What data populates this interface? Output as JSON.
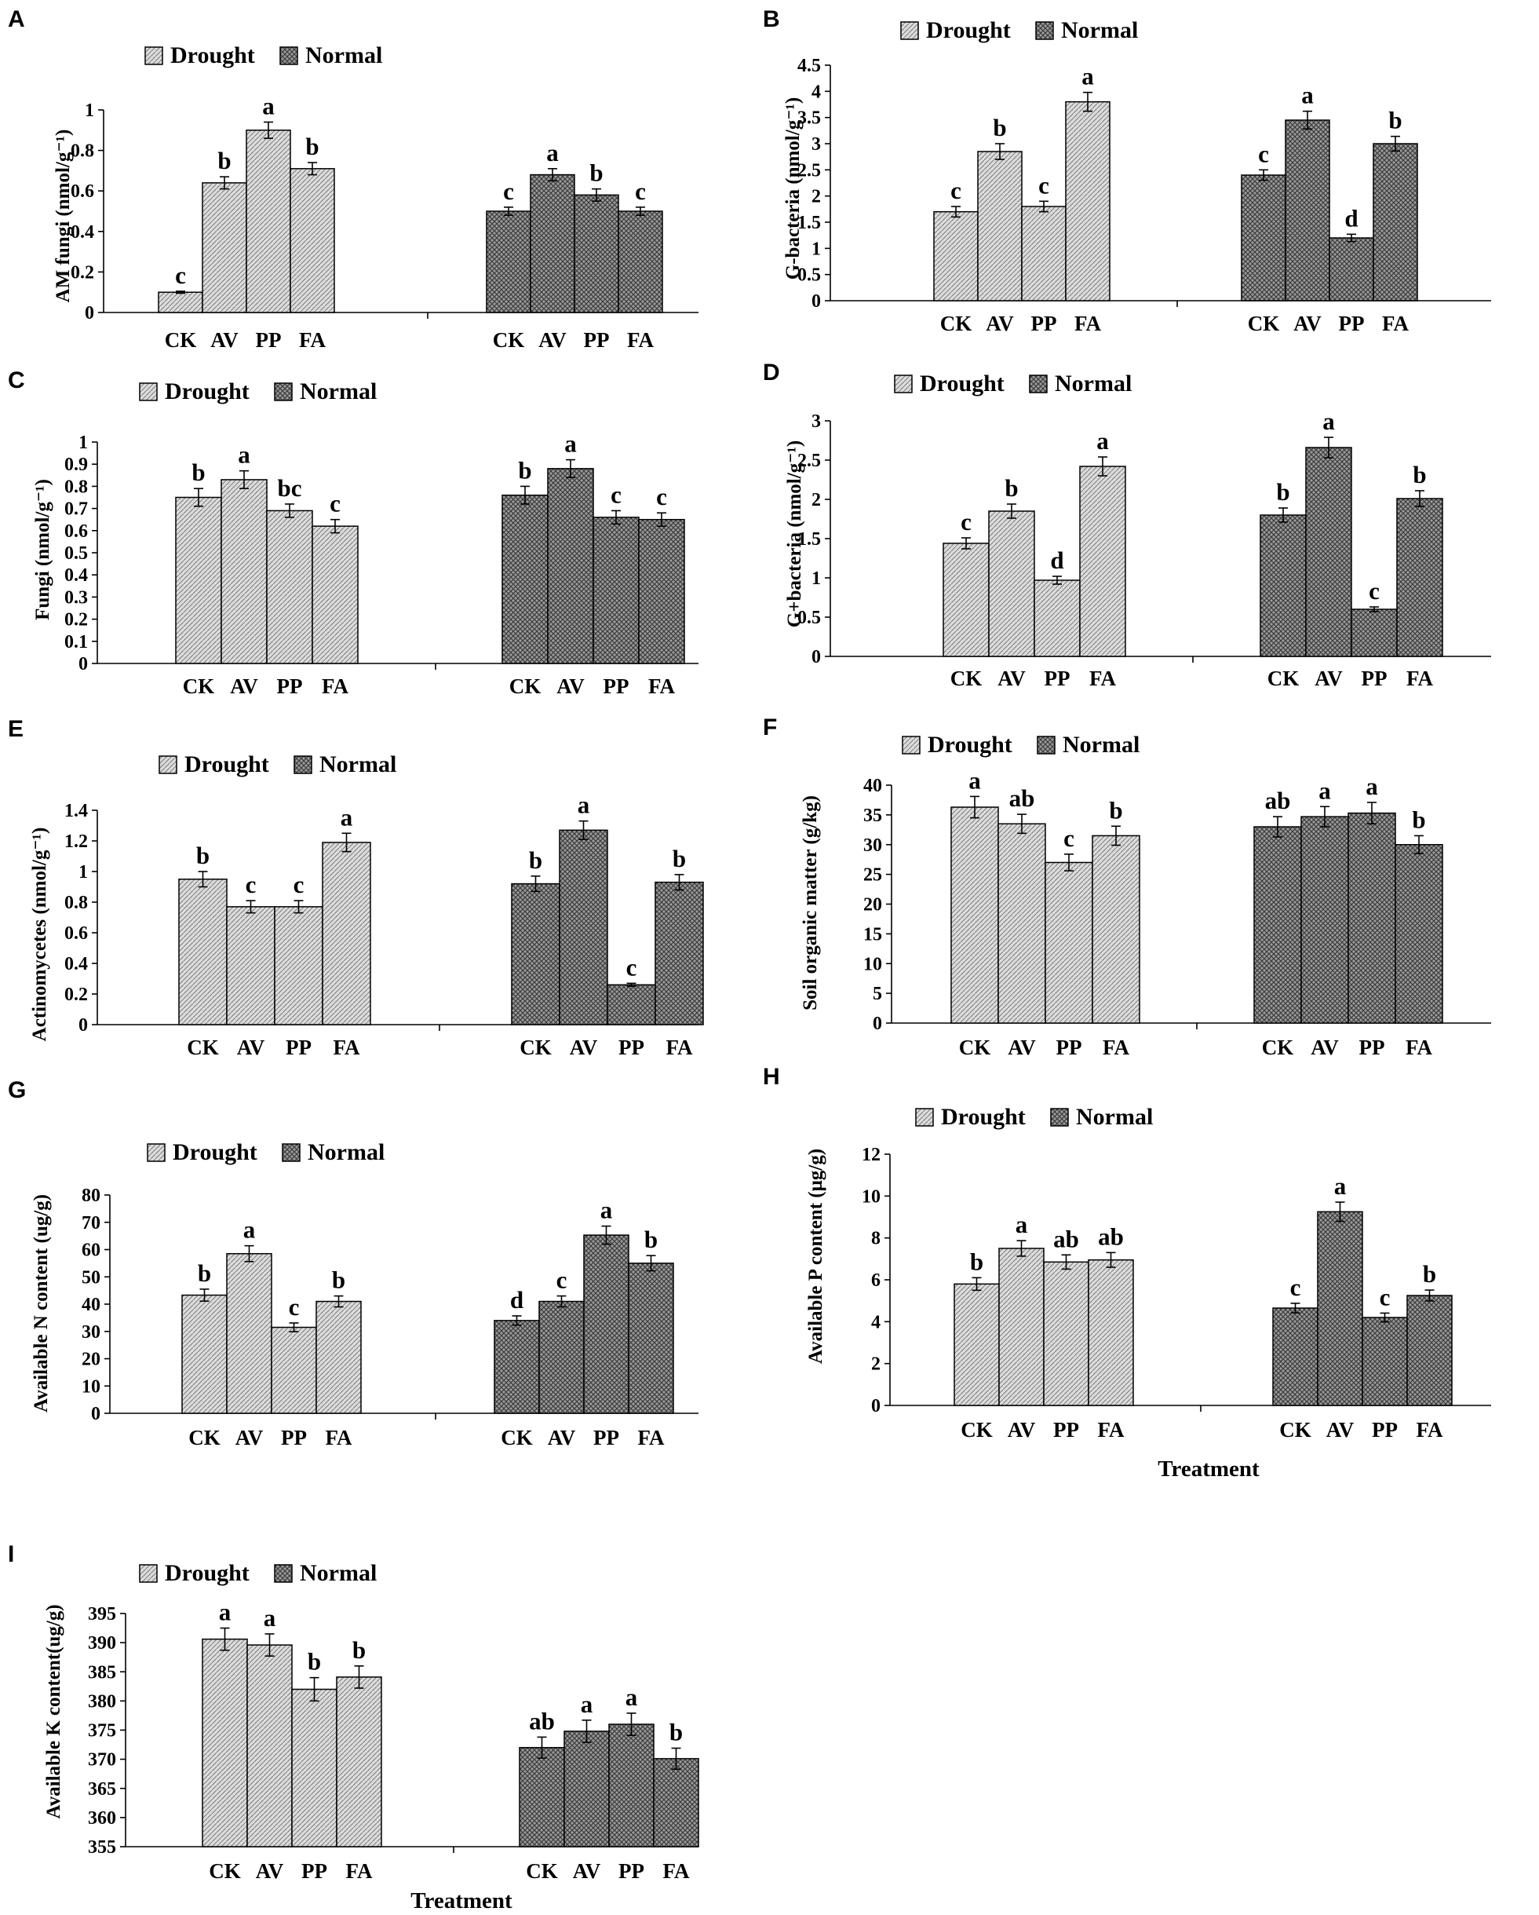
{
  "chart_data": [
    {
      "panel": "A",
      "type": "bar",
      "legend": [
        "Drought",
        "Normal"
      ],
      "ylabel": "AM fungi (nmol/g⁻¹)",
      "ylim": [
        0,
        1
      ],
      "yticks": [
        0,
        0.2,
        0.4,
        0.6,
        0.8,
        1
      ],
      "categories": [
        "CK",
        "AV",
        "PP",
        "FA"
      ],
      "xlabel": "",
      "series": [
        {
          "name": "Drought",
          "values": [
            0.1,
            0.64,
            0.9,
            0.71
          ],
          "errors": [
            0.005,
            0.03,
            0.04,
            0.03
          ],
          "letters": [
            "c",
            "b",
            "a",
            "b"
          ]
        },
        {
          "name": "Normal",
          "values": [
            0.5,
            0.68,
            0.58,
            0.5
          ],
          "errors": [
            0.02,
            0.03,
            0.03,
            0.02
          ],
          "letters": [
            "c",
            "a",
            "b",
            "c"
          ]
        }
      ]
    },
    {
      "panel": "B",
      "type": "bar",
      "legend": [
        "Drought",
        "Normal"
      ],
      "ylabel": "G-bacteria (nmol/g⁻¹)",
      "ylim": [
        0,
        4.5
      ],
      "yticks": [
        0,
        0.5,
        1,
        1.5,
        2,
        2.5,
        3,
        3.5,
        4,
        4.5
      ],
      "categories": [
        "CK",
        "AV",
        "PP",
        "FA"
      ],
      "xlabel": "",
      "series": [
        {
          "name": "Drought",
          "values": [
            1.7,
            2.85,
            1.8,
            3.8
          ],
          "errors": [
            0.1,
            0.15,
            0.1,
            0.18
          ],
          "letters": [
            "c",
            "b",
            "c",
            "a"
          ]
        },
        {
          "name": "Normal",
          "values": [
            2.4,
            3.45,
            1.2,
            3.0
          ],
          "errors": [
            0.1,
            0.17,
            0.07,
            0.14
          ],
          "letters": [
            "c",
            "a",
            "d",
            "b"
          ]
        }
      ]
    },
    {
      "panel": "C",
      "type": "bar",
      "legend": [
        "Drought",
        "Normal"
      ],
      "ylabel": "Fungi (nmol/g⁻¹)",
      "ylim": [
        0,
        1
      ],
      "yticks": [
        0,
        0.1,
        0.2,
        0.3,
        0.4,
        0.5,
        0.6,
        0.7,
        0.8,
        0.9,
        1
      ],
      "categories": [
        "CK",
        "AV",
        "PP",
        "FA"
      ],
      "xlabel": "",
      "series": [
        {
          "name": "Drought",
          "values": [
            0.75,
            0.83,
            0.69,
            0.62
          ],
          "errors": [
            0.04,
            0.04,
            0.03,
            0.03
          ],
          "letters": [
            "b",
            "a",
            "bc",
            "c"
          ]
        },
        {
          "name": "Normal",
          "values": [
            0.76,
            0.88,
            0.66,
            0.65
          ],
          "errors": [
            0.04,
            0.04,
            0.03,
            0.03
          ],
          "letters": [
            "b",
            "a",
            "c",
            "c"
          ]
        }
      ]
    },
    {
      "panel": "D",
      "type": "bar",
      "legend": [
        "Drought",
        "Normal"
      ],
      "ylabel": "G+bacteria (nmol/g⁻¹)",
      "ylim": [
        0,
        3
      ],
      "yticks": [
        0,
        0.5,
        1,
        1.5,
        2,
        2.5,
        3
      ],
      "categories": [
        "CK",
        "AV",
        "PP",
        "FA"
      ],
      "xlabel": "",
      "series": [
        {
          "name": "Drought",
          "values": [
            1.44,
            1.85,
            0.97,
            2.42
          ],
          "errors": [
            0.07,
            0.09,
            0.05,
            0.12
          ],
          "letters": [
            "c",
            "b",
            "d",
            "a"
          ]
        },
        {
          "name": "Normal",
          "values": [
            1.8,
            2.66,
            0.6,
            2.01
          ],
          "errors": [
            0.09,
            0.13,
            0.03,
            0.1
          ],
          "letters": [
            "b",
            "a",
            "c",
            "b"
          ]
        }
      ]
    },
    {
      "panel": "E",
      "type": "bar",
      "legend": [
        "Drought",
        "Normal"
      ],
      "ylabel": "Actinomycetes (nmol/g⁻¹)",
      "ylim": [
        0,
        1.4
      ],
      "yticks": [
        0,
        0.2,
        0.4,
        0.6,
        0.8,
        1,
        1.2,
        1.4
      ],
      "categories": [
        "CK",
        "AV",
        "PP",
        "FA"
      ],
      "xlabel": "",
      "series": [
        {
          "name": "Drought",
          "values": [
            0.95,
            0.77,
            0.77,
            1.19
          ],
          "errors": [
            0.05,
            0.04,
            0.04,
            0.06
          ],
          "letters": [
            "b",
            "c",
            "c",
            "a"
          ]
        },
        {
          "name": "Normal",
          "values": [
            0.92,
            1.27,
            0.26,
            0.93
          ],
          "errors": [
            0.05,
            0.06,
            0.01,
            0.05
          ],
          "letters": [
            "b",
            "a",
            "c",
            "b"
          ]
        }
      ]
    },
    {
      "panel": "F",
      "type": "bar",
      "legend": [
        "Drought",
        "Normal"
      ],
      "ylabel": "Soil organic matter (g/kg)",
      "ylim": [
        0,
        40
      ],
      "yticks": [
        0,
        5,
        10,
        15,
        20,
        25,
        30,
        35,
        40
      ],
      "categories": [
        "CK",
        "AV",
        "PP",
        "FA"
      ],
      "xlabel": "",
      "series": [
        {
          "name": "Drought",
          "values": [
            36.3,
            33.5,
            27.0,
            31.5
          ],
          "errors": [
            1.8,
            1.6,
            1.4,
            1.6
          ],
          "letters": [
            "a",
            "ab",
            "c",
            "b"
          ]
        },
        {
          "name": "Normal",
          "values": [
            33.0,
            34.7,
            35.3,
            30.0
          ],
          "errors": [
            1.7,
            1.7,
            1.8,
            1.5
          ],
          "letters": [
            "ab",
            "a",
            "a",
            "b"
          ]
        }
      ]
    },
    {
      "panel": "G",
      "type": "bar",
      "legend": [
        "Drought",
        "Normal"
      ],
      "ylabel": "Available N content (ug/g)",
      "ylim": [
        0,
        80
      ],
      "yticks": [
        0,
        10,
        20,
        30,
        40,
        50,
        60,
        70,
        80
      ],
      "categories": [
        "CK",
        "AV",
        "PP",
        "FA"
      ],
      "xlabel": "",
      "series": [
        {
          "name": "Drought",
          "values": [
            43.3,
            58.5,
            31.5,
            41.0
          ],
          "errors": [
            2.2,
            2.9,
            1.6,
            2.0
          ],
          "letters": [
            "b",
            "a",
            "c",
            "b"
          ]
        },
        {
          "name": "Normal",
          "values": [
            34.0,
            41.0,
            65.3,
            55.0
          ],
          "errors": [
            1.7,
            2.0,
            3.3,
            2.8
          ],
          "letters": [
            "d",
            "c",
            "a",
            "b"
          ]
        }
      ]
    },
    {
      "panel": "H",
      "type": "bar",
      "legend": [
        "Drought",
        "Normal"
      ],
      "ylabel": "Available P content (μg/g)",
      "ylim": [
        0,
        12
      ],
      "yticks": [
        0,
        2,
        4,
        6,
        8,
        10,
        12
      ],
      "categories": [
        "CK",
        "AV",
        "PP",
        "FA"
      ],
      "xlabel": "Treatment",
      "series": [
        {
          "name": "Drought",
          "values": [
            5.8,
            7.5,
            6.85,
            6.95
          ],
          "errors": [
            0.3,
            0.37,
            0.34,
            0.35
          ],
          "letters": [
            "b",
            "a",
            "ab",
            "ab"
          ]
        },
        {
          "name": "Normal",
          "values": [
            4.65,
            9.25,
            4.2,
            5.25
          ],
          "errors": [
            0.23,
            0.46,
            0.21,
            0.26
          ],
          "letters": [
            "c",
            "a",
            "c",
            "b"
          ]
        }
      ]
    },
    {
      "panel": "I",
      "type": "bar",
      "legend": [
        "Drought",
        "Normal"
      ],
      "ylabel": "Available K content(ug/g)",
      "ylim": [
        355,
        395
      ],
      "yticks": [
        355,
        360,
        365,
        370,
        375,
        380,
        385,
        390,
        395
      ],
      "categories": [
        "CK",
        "AV",
        "PP",
        "FA"
      ],
      "xlabel": "Treatment",
      "series": [
        {
          "name": "Drought",
          "values": [
            390.6,
            389.6,
            382.0,
            384.1
          ],
          "errors": [
            1.9,
            1.9,
            2.0,
            1.9
          ],
          "letters": [
            "a",
            "a",
            "b",
            "b"
          ]
        },
        {
          "name": "Normal",
          "values": [
            372.0,
            374.8,
            376.0,
            370.1
          ],
          "errors": [
            1.8,
            1.9,
            1.9,
            1.8
          ],
          "letters": [
            "ab",
            "a",
            "a",
            "b"
          ]
        }
      ]
    }
  ]
}
